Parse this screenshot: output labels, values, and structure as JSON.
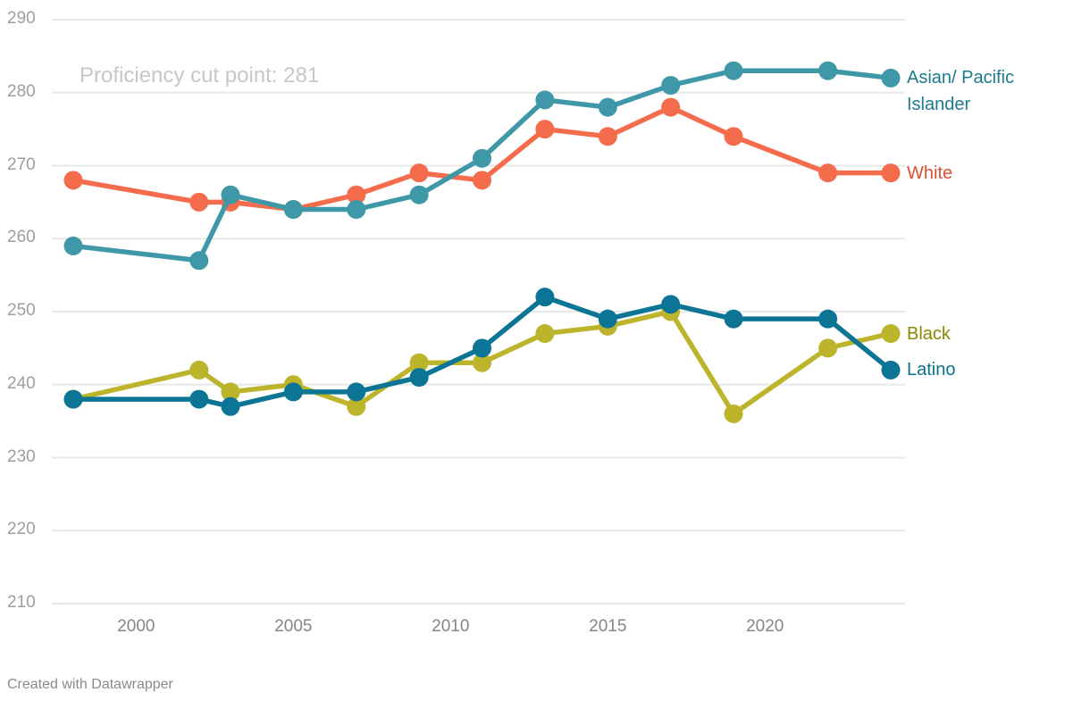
{
  "footer": {
    "credit": "Created with Datawrapper"
  },
  "chart_data": {
    "type": "line",
    "title": "",
    "xlabel": "",
    "ylabel": "",
    "xlim": [
      1998,
      2024
    ],
    "ylim": [
      210,
      290
    ],
    "grid": "horizontal",
    "legend_position": "right-end-of-line-labels",
    "x": [
      1998,
      2002,
      2003,
      2005,
      2007,
      2009,
      2011,
      2013,
      2015,
      2017,
      2019,
      2022,
      2024
    ],
    "x_axis": {
      "tick_labels": [
        "2000",
        "2005",
        "2010",
        "2015",
        "2020"
      ],
      "tick_values": [
        2000,
        2005,
        2010,
        2015,
        2020
      ]
    },
    "y_axis": {
      "tick_labels": [
        "290",
        "280",
        "270",
        "260",
        "250",
        "240",
        "230",
        "220",
        "210"
      ],
      "tick_values": [
        290,
        280,
        270,
        260,
        250,
        240,
        230,
        220,
        210
      ]
    },
    "annotations": [
      {
        "text": "Proficiency cut point: 281",
        "x": 1998.2,
        "y": 284,
        "color": "#c7c7c7"
      }
    ],
    "series": [
      {
        "name": "Black",
        "label": "Black",
        "color": "#bcb42a",
        "label_color": "#8b8800",
        "values": [
          238,
          242,
          239,
          240,
          237,
          243,
          243,
          247,
          248,
          250,
          236,
          245,
          247
        ]
      },
      {
        "name": "Latino",
        "label": "Latino",
        "color": "#0c7595",
        "label_color": "#0a7190",
        "values": [
          238,
          238,
          237,
          239,
          239,
          241,
          245,
          252,
          249,
          251,
          249,
          249,
          242
        ]
      },
      {
        "name": "White",
        "label": "White",
        "color": "#f56c4d",
        "label_color": "#e24d2e",
        "values": [
          268,
          265,
          265,
          264,
          266,
          269,
          268,
          275,
          274,
          278,
          274,
          269,
          269
        ]
      },
      {
        "name": "Asian/ Pacific Islander",
        "label": "Asian/ Pacific Islander",
        "color": "#3f98a8",
        "label_color": "#1d7a8f",
        "values": [
          259,
          257,
          266,
          264,
          264,
          266,
          271,
          279,
          278,
          281,
          283,
          283,
          282
        ]
      }
    ]
  }
}
